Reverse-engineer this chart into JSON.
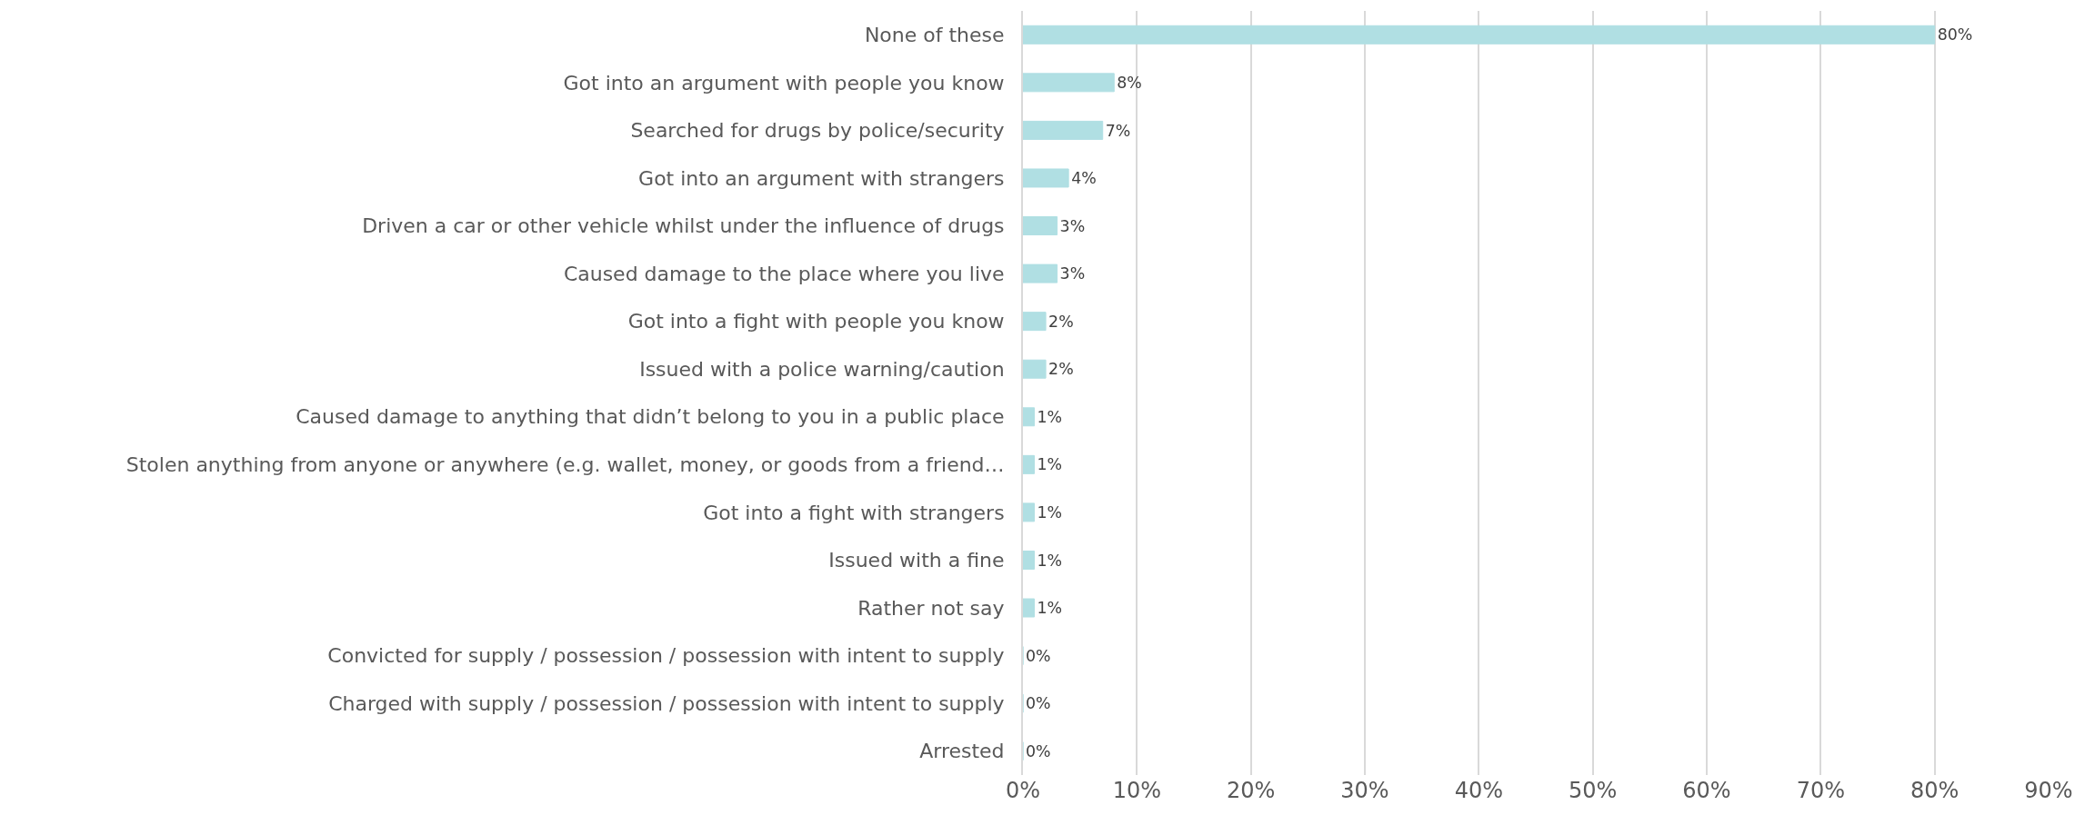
{
  "chart_data": {
    "type": "bar",
    "orientation": "horizontal",
    "categories": [
      "None of these",
      "Got into an argument with people you know",
      "Searched for drugs by police/security",
      "Got into an argument with strangers",
      "Driven a car or other vehicle whilst under the influence of drugs",
      "Caused damage to the place where you live",
      "Got into a fight with people you know",
      "Issued with a police warning/caution",
      "Caused damage to anything that didn’t belong to you in a public place",
      "Stolen anything from anyone or anywhere (e.g. wallet, money, or goods from a friend…",
      "Got into a fight with strangers",
      "Issued with a fine",
      "Rather not say",
      "Convicted for supply / possession / possession with intent to supply",
      "Charged with supply / possession / possession with intent to supply",
      "Arrested"
    ],
    "values": [
      80,
      8,
      7,
      4,
      3,
      3,
      2,
      2,
      1,
      1,
      1,
      1,
      1,
      0,
      0,
      0
    ],
    "value_labels": [
      "80%",
      "8%",
      "7%",
      "4%",
      "3%",
      "3%",
      "2%",
      "2%",
      "1%",
      "1%",
      "1%",
      "1%",
      "1%",
      "0%",
      "0%",
      "0%"
    ],
    "color": "#b0dfe3",
    "xlim": [
      0,
      90
    ],
    "xticks": [
      {
        "value": 0,
        "label": "0%"
      },
      {
        "value": 10,
        "label": "10%"
      },
      {
        "value": 20,
        "label": "20%"
      },
      {
        "value": 30,
        "label": "30%"
      },
      {
        "value": 40,
        "label": "40%"
      },
      {
        "value": 50,
        "label": "50%"
      },
      {
        "value": 60,
        "label": "60%"
      },
      {
        "value": 70,
        "label": "70%"
      },
      {
        "value": 80,
        "label": "80%"
      },
      {
        "value": 90,
        "label": "90%"
      }
    ],
    "grid": "x",
    "legend": false
  }
}
